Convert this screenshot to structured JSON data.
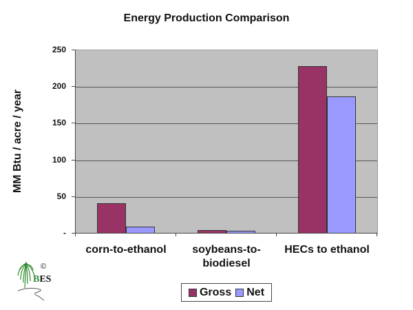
{
  "chart_data": {
    "type": "bar",
    "title": "Energy Production Comparison",
    "xlabel": "",
    "ylabel": "MM Btu / acre / year",
    "ylim": [
      0,
      250
    ],
    "yticks": [
      0,
      50,
      100,
      150,
      200,
      250
    ],
    "ytick_labels": [
      "-",
      "50",
      "100",
      "150",
      "200",
      "250"
    ],
    "categories": [
      "corn-to-ethanol",
      "soybeans-to-biodiesel",
      "HECs to ethanol"
    ],
    "series": [
      {
        "name": "Gross",
        "color": "#993366",
        "values": [
          41,
          5,
          228
        ]
      },
      {
        "name": "Net",
        "color": "#9999ff",
        "values": [
          9,
          4,
          187
        ]
      }
    ],
    "grid": true,
    "legend_position": "bottom",
    "plot_background": "#c0c0c0"
  },
  "labels": {
    "title": "Energy Production Comparison",
    "ylabel": "MM Btu / acre / year",
    "categories": [
      "corn-to-ethanol",
      "soybeans-to-biodiesel",
      "HECs to ethanol"
    ],
    "category_lines": [
      [
        "corn-to-ethanol"
      ],
      [
        "soybeans-to-",
        "biodiesel"
      ],
      [
        "HECs to ethanol"
      ]
    ],
    "legend": [
      "Gross",
      "Net"
    ]
  },
  "logo": {
    "text": "BES",
    "copyright": "©"
  }
}
